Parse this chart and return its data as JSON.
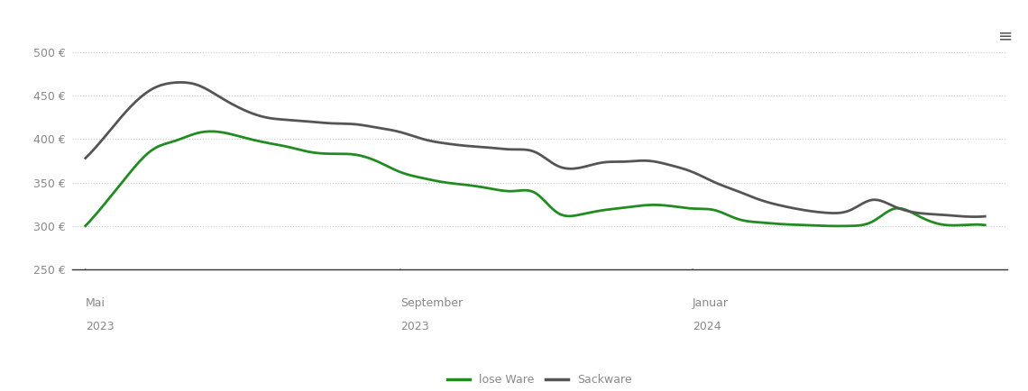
{
  "lose_ware_x": [
    0,
    0.5,
    1,
    1.5,
    2,
    2.5,
    3,
    3.5,
    4,
    4.5,
    5,
    5.5,
    6,
    6.5,
    7,
    7.5,
    8,
    8.5,
    9,
    9.5,
    10,
    10.5,
    11,
    11.5,
    12,
    12.5,
    13,
    13.5,
    14,
    14.5,
    15,
    15.5,
    16,
    16.5,
    17,
    17.5,
    18,
    18.5,
    19,
    19.5,
    20
  ],
  "lose_ware_y": [
    300,
    330,
    362,
    388,
    398,
    407,
    408,
    402,
    396,
    391,
    385,
    383,
    382,
    374,
    362,
    355,
    350,
    347,
    343,
    340,
    338,
    315,
    313,
    318,
    321,
    324,
    323,
    320,
    318,
    308,
    304,
    302,
    301,
    300,
    300,
    305,
    320,
    312,
    302,
    301,
    301
  ],
  "sackware_x": [
    0,
    0.5,
    1,
    1.5,
    2,
    2.5,
    3,
    3.5,
    4,
    4.5,
    5,
    5.5,
    6,
    6.5,
    7,
    7.5,
    8,
    8.5,
    9,
    9.5,
    10,
    10.5,
    11,
    11.5,
    12,
    12.5,
    13,
    13.5,
    14,
    14.5,
    15,
    15.5,
    16,
    16.5,
    17,
    17.5,
    18,
    18.5,
    19,
    19.5,
    20
  ],
  "sackware_y": [
    378,
    407,
    437,
    458,
    465,
    462,
    448,
    434,
    425,
    422,
    420,
    418,
    417,
    413,
    408,
    400,
    395,
    392,
    390,
    388,
    385,
    369,
    367,
    373,
    374,
    375,
    370,
    362,
    350,
    340,
    330,
    323,
    318,
    315,
    318,
    330,
    322,
    315,
    313,
    311,
    311
  ],
  "x_tick_positions": [
    0,
    7,
    13.5
  ],
  "x_tick_labels_line1": [
    "Mai",
    "September",
    "Januar"
  ],
  "x_tick_labels_line2": [
    "2023",
    "2023",
    "2024"
  ],
  "y_ticks": [
    250,
    300,
    350,
    400,
    450,
    500
  ],
  "ylim": [
    245,
    515
  ],
  "xlim": [
    -0.3,
    20.5
  ],
  "lose_ware_color": "#228B22",
  "sackware_color": "#555555",
  "line_width": 2.0,
  "legend_lose_ware": "lose Ware",
  "legend_sackware": "Sackware",
  "background_color": "#ffffff",
  "grid_color": "#cccccc",
  "tick_label_color": "#888888",
  "menu_icon_color": "#555555"
}
